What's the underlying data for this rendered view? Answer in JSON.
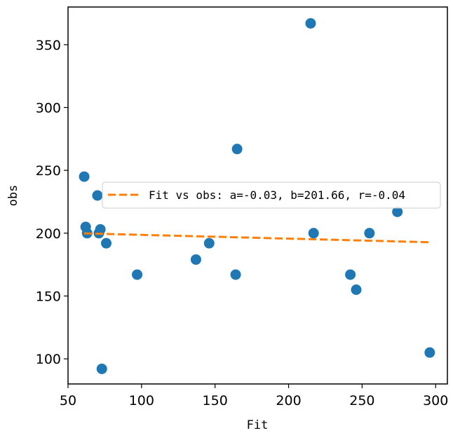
{
  "chart_data": {
    "type": "scatter",
    "title": "",
    "xlabel": "Fit",
    "ylabel": "obs",
    "xlim": [
      50,
      308
    ],
    "ylim": [
      80,
      380
    ],
    "xticks": [
      50,
      100,
      150,
      200,
      250,
      300
    ],
    "yticks": [
      100,
      150,
      200,
      250,
      300,
      350
    ],
    "grid": false,
    "legend_position": "center-right",
    "colors": {
      "points": "#1f77b4",
      "fit_line": "#ff7f0e"
    },
    "series": [
      {
        "type": "scatter",
        "x": [
          61,
          62,
          63,
          70,
          71,
          72,
          73,
          76,
          97,
          137,
          146,
          164,
          165,
          215,
          217,
          242,
          246,
          255,
          274,
          296
        ],
        "y": [
          245,
          205,
          200,
          230,
          200,
          203,
          92,
          192,
          167,
          179,
          192,
          167,
          267,
          367,
          200,
          167,
          155,
          200,
          217,
          105
        ]
      },
      {
        "type": "line",
        "name": "Fit vs obs: a=-0.03, b=201.66, r=-0.04",
        "style": "dashed",
        "x": [
          61,
          296
        ],
        "y": [
          199.83,
          192.78
        ]
      }
    ]
  }
}
